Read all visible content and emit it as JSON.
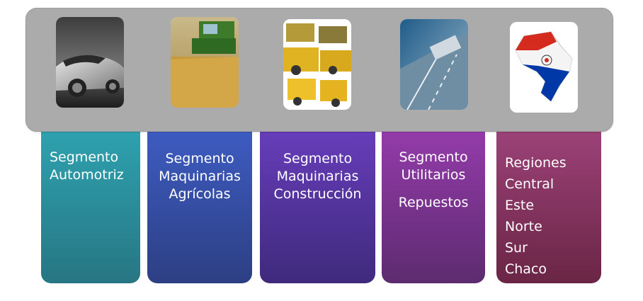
{
  "columns": [
    {
      "name": "automotriz",
      "lines": [
        "Segmento",
        "Automotriz"
      ]
    },
    {
      "name": "agricolas",
      "lines": [
        "Segmento",
        "Maquinarias",
        "Agrícolas"
      ]
    },
    {
      "name": "construccion",
      "lines": [
        "Segmento",
        "Maquinarias",
        "Construcción"
      ]
    },
    {
      "name": "utilitarios",
      "lines": [
        "Segmento",
        "Utilitarios"
      ],
      "extra": "Repuestos"
    },
    {
      "name": "regiones",
      "lines": [
        "Regiones",
        "Central",
        "Este",
        "Norte",
        "Sur",
        "Chaco"
      ]
    }
  ],
  "thumbnails": [
    {
      "icon": "car-photo-icon"
    },
    {
      "icon": "combine-harvester-photo-icon"
    },
    {
      "icon": "construction-machinery-photo-icon"
    },
    {
      "icon": "highway-truck-photo-icon"
    },
    {
      "icon": "paraguay-map-flag-icon"
    }
  ]
}
